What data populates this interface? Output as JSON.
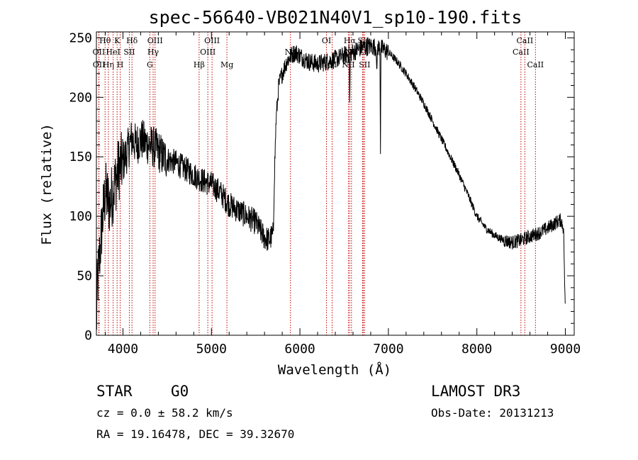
{
  "chart_data": {
    "type": "line",
    "title": "spec-56640-VB021N40V1_sp10-190.fits",
    "xlabel": "Wavelength (Å)",
    "ylabel": "Flux (relative)",
    "xlim": [
      3700,
      9100
    ],
    "ylim": [
      0,
      255
    ],
    "xticks": [
      4000,
      5000,
      6000,
      7000,
      8000,
      9000
    ],
    "yticks": [
      0,
      50,
      100,
      150,
      200,
      250
    ],
    "series": [
      {
        "name": "flux",
        "anchors": [
          [
            3700,
            5
          ],
          [
            3710,
            40
          ],
          [
            3730,
            60
          ],
          [
            3760,
            90
          ],
          [
            3800,
            120
          ],
          [
            3850,
            110
          ],
          [
            3900,
            125
          ],
          [
            3950,
            140
          ],
          [
            4000,
            145
          ],
          [
            4050,
            155
          ],
          [
            4100,
            165
          ],
          [
            4150,
            160
          ],
          [
            4200,
            165
          ],
          [
            4250,
            162
          ],
          [
            4300,
            160
          ],
          [
            4350,
            158
          ],
          [
            4400,
            155
          ],
          [
            4450,
            150
          ],
          [
            4500,
            148
          ],
          [
            4600,
            145
          ],
          [
            4700,
            140
          ],
          [
            4800,
            135
          ],
          [
            4900,
            130
          ],
          [
            5000,
            127
          ],
          [
            5100,
            120
          ],
          [
            5200,
            110
          ],
          [
            5300,
            105
          ],
          [
            5400,
            100
          ],
          [
            5500,
            95
          ],
          [
            5550,
            88
          ],
          [
            5600,
            82
          ],
          [
            5650,
            80
          ],
          [
            5700,
            85
          ],
          [
            5710,
            130
          ],
          [
            5730,
            180
          ],
          [
            5760,
            210
          ],
          [
            5800,
            220
          ],
          [
            5850,
            230
          ],
          [
            5900,
            235
          ],
          [
            5950,
            238
          ],
          [
            6000,
            235
          ],
          [
            6100,
            230
          ],
          [
            6200,
            228
          ],
          [
            6300,
            230
          ],
          [
            6400,
            232
          ],
          [
            6500,
            235
          ],
          [
            6600,
            238
          ],
          [
            6700,
            242
          ],
          [
            6800,
            243
          ],
          [
            6900,
            242
          ],
          [
            7000,
            238
          ],
          [
            7100,
            230
          ],
          [
            7200,
            220
          ],
          [
            7300,
            208
          ],
          [
            7400,
            195
          ],
          [
            7500,
            180
          ],
          [
            7600,
            165
          ],
          [
            7700,
            150
          ],
          [
            7800,
            135
          ],
          [
            7900,
            118
          ],
          [
            8000,
            100
          ],
          [
            8100,
            90
          ],
          [
            8200,
            84
          ],
          [
            8300,
            80
          ],
          [
            8400,
            78
          ],
          [
            8500,
            80
          ],
          [
            8600,
            83
          ],
          [
            8700,
            86
          ],
          [
            8800,
            90
          ],
          [
            8900,
            95
          ],
          [
            8950,
            97
          ],
          [
            8980,
            90
          ],
          [
            9000,
            15
          ]
        ],
        "absorption": [
          {
            "center": 6563,
            "depth": 50
          },
          {
            "center": 6870,
            "depth": 30
          },
          {
            "center": 6910,
            "depth": 85
          }
        ]
      }
    ],
    "lines": [
      {
        "label": "Hθ",
        "wave": 3798,
        "row": 1
      },
      {
        "label": "OII",
        "wave": 3727,
        "row": 2
      },
      {
        "label": "OII",
        "wave": 3729,
        "row": 3
      },
      {
        "label": "Hη",
        "wave": 3835,
        "row": 3
      },
      {
        "label": "K",
        "wave": 3934,
        "row": 1
      },
      {
        "label": "HeI",
        "wave": 3889,
        "row": 2
      },
      {
        "label": "H",
        "wave": 3969,
        "row": 3
      },
      {
        "label": "SII",
        "wave": 4072,
        "row": 2
      },
      {
        "label": "Hδ",
        "wave": 4102,
        "row": 1
      },
      {
        "label": "OIII",
        "wave": 4363,
        "row": 1
      },
      {
        "label": "Hγ",
        "wave": 4341,
        "row": 2
      },
      {
        "label": "G",
        "wave": 4304,
        "row": 3
      },
      {
        "label": "Hβ",
        "wave": 4861,
        "row": 3
      },
      {
        "label": "OIII",
        "wave": 5007,
        "row": 1
      },
      {
        "label": "OIII",
        "wave": 4959,
        "row": 2
      },
      {
        "label": "Mg",
        "wave": 5175,
        "row": 3
      },
      {
        "label": "Na",
        "wave": 5893,
        "row": 2
      },
      {
        "label": "OI",
        "wave": 6300,
        "row": 1
      },
      {
        "label": "OI",
        "wave": 6364,
        "row": 3
      },
      {
        "label": "Hα",
        "wave": 6563,
        "row": 1
      },
      {
        "label": "NII",
        "wave": 6548,
        "row": 3
      },
      {
        "label": "NII",
        "wave": 6583,
        "row": 2
      },
      {
        "label": "SII",
        "wave": 6717,
        "row": 1
      },
      {
        "label": "SII",
        "wave": 6731,
        "row": 3
      },
      {
        "label": "Li",
        "wave": 6708,
        "row": 2
      },
      {
        "label": "CaII",
        "wave": 8498,
        "row": 2
      },
      {
        "label": "CaII",
        "wave": 8542,
        "row": 1
      },
      {
        "label": "CaII",
        "wave": 8662,
        "row": 3
      }
    ]
  },
  "info": {
    "class": "STAR",
    "subclass": "G0",
    "survey": "LAMOST DR3",
    "cz": "cz = 0.0 ± 58.2 km/s",
    "obsdate": "Obs-Date: 20131213",
    "radec": "RA =  19.16478, DEC =  39.32670"
  },
  "colors": {
    "line": "#000000",
    "marker": "#c00000"
  }
}
